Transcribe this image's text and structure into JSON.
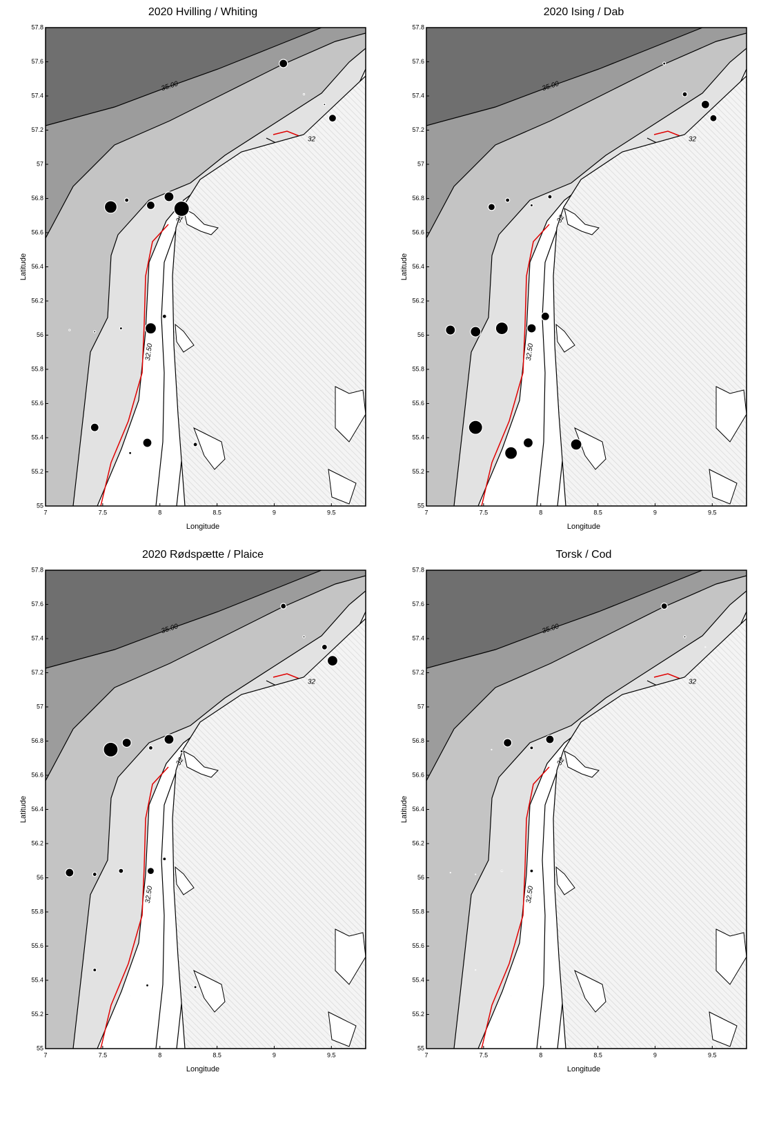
{
  "chart_data": [
    {
      "type": "bubble",
      "title": "2020 Hvilling / Whiting",
      "xlabel": "Longitude",
      "ylabel": "Latitude",
      "contour_labels": [
        "35.00",
        "32.50",
        "32"
      ],
      "xlim": [
        7,
        9.8
      ],
      "ylim": [
        55,
        57.8
      ],
      "xticks": [
        7,
        7.5,
        8,
        8.5,
        9,
        9.5
      ],
      "yticks": [
        55,
        55.2,
        55.4,
        55.6,
        55.8,
        56,
        56.2,
        56.4,
        56.6,
        56.8,
        57,
        57.2,
        57.4,
        57.6,
        57.8
      ],
      "x": [
        9.08,
        9.26,
        9.44,
        9.51,
        7.57,
        7.71,
        7.92,
        8.08,
        8.19,
        7.21,
        7.43,
        7.66,
        7.92,
        8.04,
        7.43,
        7.74,
        7.89,
        8.31
      ],
      "y": [
        57.59,
        57.41,
        57.35,
        57.27,
        56.75,
        56.79,
        56.76,
        56.81,
        56.74,
        56.03,
        56.02,
        56.04,
        56.04,
        56.11,
        55.46,
        55.31,
        55.37,
        55.36
      ],
      "sizes": [
        6,
        1,
        1.5,
        5.5,
        9,
        3,
        6,
        7,
        11,
        1,
        1.5,
        2,
        8,
        3,
        6,
        2,
        6.5,
        3
      ]
    },
    {
      "type": "bubble",
      "title": "2020 Ising / Dab",
      "xlabel": "Longitude",
      "ylabel": "Latitude",
      "contour_labels": [
        "35.00",
        "32.50",
        "32"
      ],
      "xlim": [
        7,
        9.8
      ],
      "ylim": [
        55,
        57.8
      ],
      "xticks": [
        7,
        7.5,
        8,
        8.5,
        9,
        9.5
      ],
      "yticks": [
        55,
        55.2,
        55.4,
        55.6,
        55.8,
        56,
        56.2,
        56.4,
        56.6,
        56.8,
        57,
        57.2,
        57.4,
        57.6,
        57.8
      ],
      "x": [
        9.08,
        9.26,
        9.44,
        9.51,
        7.57,
        7.71,
        7.92,
        8.08,
        8.19,
        7.21,
        7.43,
        7.66,
        7.92,
        8.04,
        7.43,
        7.74,
        7.89,
        8.31
      ],
      "y": [
        57.59,
        57.41,
        57.35,
        57.27,
        56.75,
        56.79,
        56.76,
        56.81,
        56.74,
        56.03,
        56.02,
        56.04,
        56.04,
        56.11,
        55.46,
        55.31,
        55.37,
        55.36
      ],
      "sizes": [
        2,
        3.5,
        6,
        5,
        5,
        3,
        2,
        3,
        0,
        7,
        7.5,
        9,
        6.5,
        6,
        10,
        9,
        7,
        8
      ]
    },
    {
      "type": "bubble",
      "title": "2020 Rødspætte / Plaice",
      "xlabel": "Longitude",
      "ylabel": "Latitude",
      "contour_labels": [
        "35.00",
        "32.50",
        "32"
      ],
      "xlim": [
        7,
        9.8
      ],
      "ylim": [
        55,
        57.8
      ],
      "xticks": [
        7,
        7.5,
        8,
        8.5,
        9,
        9.5
      ],
      "yticks": [
        55,
        55.2,
        55.4,
        55.6,
        55.8,
        56,
        56.2,
        56.4,
        56.6,
        56.8,
        57,
        57.2,
        57.4,
        57.6,
        57.8
      ],
      "x": [
        9.08,
        9.26,
        9.44,
        9.51,
        7.57,
        7.71,
        7.92,
        8.08,
        8.19,
        7.21,
        7.43,
        7.66,
        7.92,
        8.04,
        7.43,
        7.74,
        7.89,
        8.31
      ],
      "y": [
        57.59,
        57.41,
        57.35,
        57.27,
        56.75,
        56.79,
        56.76,
        56.81,
        56.74,
        56.03,
        56.02,
        56.04,
        56.04,
        56.11,
        55.46,
        55.31,
        55.37,
        55.36
      ],
      "sizes": [
        4,
        1.5,
        4,
        7.5,
        10.5,
        6.5,
        3,
        7,
        2,
        6,
        3,
        3.5,
        5,
        2.5,
        2.5,
        0.5,
        2,
        2
      ]
    },
    {
      "type": "bubble",
      "title": "Torsk / Cod",
      "xlabel": "Longitude",
      "ylabel": "Latitude",
      "contour_labels": [
        "35.00",
        "32.50",
        "32"
      ],
      "xlim": [
        7,
        9.8
      ],
      "ylim": [
        55,
        57.8
      ],
      "xticks": [
        7,
        7.5,
        8,
        8.5,
        9,
        9.5
      ],
      "yticks": [
        55,
        55.2,
        55.4,
        55.6,
        55.8,
        56,
        56.2,
        56.4,
        56.6,
        56.8,
        57,
        57.2,
        57.4,
        57.6,
        57.8
      ],
      "x": [
        9.08,
        9.26,
        9.44,
        9.51,
        7.57,
        7.71,
        7.92,
        8.08,
        8.19,
        7.21,
        7.43,
        7.66,
        7.92,
        8.04,
        7.43,
        7.74,
        7.89,
        8.31
      ],
      "y": [
        57.59,
        57.41,
        57.35,
        57.27,
        56.75,
        56.79,
        56.76,
        56.81,
        56.74,
        56.03,
        56.02,
        56.04,
        56.04,
        56.11,
        55.46,
        55.31,
        55.37,
        55.36
      ],
      "sizes": [
        4.5,
        1.5,
        0.5,
        0.5,
        0.5,
        6,
        2.5,
        6,
        0,
        0.5,
        0.5,
        1,
        2.5,
        0.5,
        0.5,
        0.5,
        0.5,
        0
      ]
    }
  ]
}
